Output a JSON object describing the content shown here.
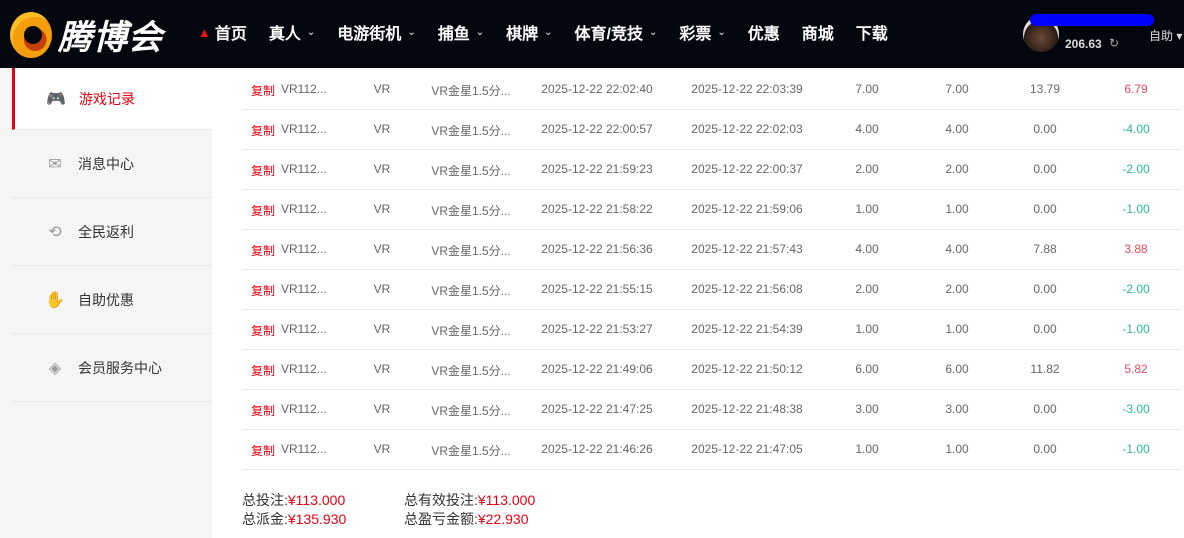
{
  "header": {
    "logo_text": "腾博会",
    "nav": [
      {
        "label": "首页",
        "icon": "home-icon"
      },
      {
        "label": "真人",
        "chevron": true
      },
      {
        "label": "电游街机",
        "chevron": true
      },
      {
        "label": "捕鱼",
        "chevron": true
      },
      {
        "label": "棋牌",
        "chevron": true
      },
      {
        "label": "体育/竞技",
        "chevron": true
      },
      {
        "label": "彩票",
        "chevron": true
      },
      {
        "label": "优惠"
      },
      {
        "label": "商城"
      },
      {
        "label": "下载"
      }
    ],
    "balance": "206.63",
    "self_help": "自助"
  },
  "sidebar": {
    "items": [
      {
        "label": "游戏记录",
        "icon": "gamepad-icon",
        "active": true
      },
      {
        "label": "消息中心",
        "icon": "message-icon"
      },
      {
        "label": "全民返利",
        "icon": "rebate-icon"
      },
      {
        "label": "自助优惠",
        "icon": "hand-coin-icon"
      },
      {
        "label": "会员服务中心",
        "icon": "handshake-icon"
      }
    ]
  },
  "table": {
    "copy_label": "复制",
    "rows": [
      [
        "VR112...",
        "VR",
        "VR金星1.5分...",
        "2025-12-22 22:02:40",
        "2025-12-22 22:03:39",
        "7.00",
        "7.00",
        "13.79",
        "6.79"
      ],
      [
        "VR112...",
        "VR",
        "VR金星1.5分...",
        "2025-12-22 22:00:57",
        "2025-12-22 22:02:03",
        "4.00",
        "4.00",
        "0.00",
        "-4.00"
      ],
      [
        "VR112...",
        "VR",
        "VR金星1.5分...",
        "2025-12-22 21:59:23",
        "2025-12-22 22:00:37",
        "2.00",
        "2.00",
        "0.00",
        "-2.00"
      ],
      [
        "VR112...",
        "VR",
        "VR金星1.5分...",
        "2025-12-22 21:58:22",
        "2025-12-22 21:59:06",
        "1.00",
        "1.00",
        "0.00",
        "-1.00"
      ],
      [
        "VR112...",
        "VR",
        "VR金星1.5分...",
        "2025-12-22 21:56:36",
        "2025-12-22 21:57:43",
        "4.00",
        "4.00",
        "7.88",
        "3.88"
      ],
      [
        "VR112...",
        "VR",
        "VR金星1.5分...",
        "2025-12-22 21:55:15",
        "2025-12-22 21:56:08",
        "2.00",
        "2.00",
        "0.00",
        "-2.00"
      ],
      [
        "VR112...",
        "VR",
        "VR金星1.5分...",
        "2025-12-22 21:53:27",
        "2025-12-22 21:54:39",
        "1.00",
        "1.00",
        "0.00",
        "-1.00"
      ],
      [
        "VR112...",
        "VR",
        "VR金星1.5分...",
        "2025-12-22 21:49:06",
        "2025-12-22 21:50:12",
        "6.00",
        "6.00",
        "11.82",
        "5.82"
      ],
      [
        "VR112...",
        "VR",
        "VR金星1.5分...",
        "2025-12-22 21:47:25",
        "2025-12-22 21:48:38",
        "3.00",
        "3.00",
        "0.00",
        "-3.00"
      ],
      [
        "VR112...",
        "VR",
        "VR金星1.5分...",
        "2025-12-22 21:46:26",
        "2025-12-22 21:47:05",
        "1.00",
        "1.00",
        "0.00",
        "-1.00"
      ]
    ]
  },
  "totals": {
    "total_bet_label": "总投注:",
    "total_bet": "¥113.000",
    "valid_bet_label": "总有效投注:",
    "valid_bet": "¥113.000",
    "payout_label": "总派金:",
    "payout": "¥135.930",
    "profit_label": "总盈亏金额:",
    "profit": "¥22.930"
  },
  "colors": {
    "accent": "#e60012",
    "positive": "#e84a5f",
    "negative": "#2bb5a5",
    "header_bg": "#05070f"
  }
}
